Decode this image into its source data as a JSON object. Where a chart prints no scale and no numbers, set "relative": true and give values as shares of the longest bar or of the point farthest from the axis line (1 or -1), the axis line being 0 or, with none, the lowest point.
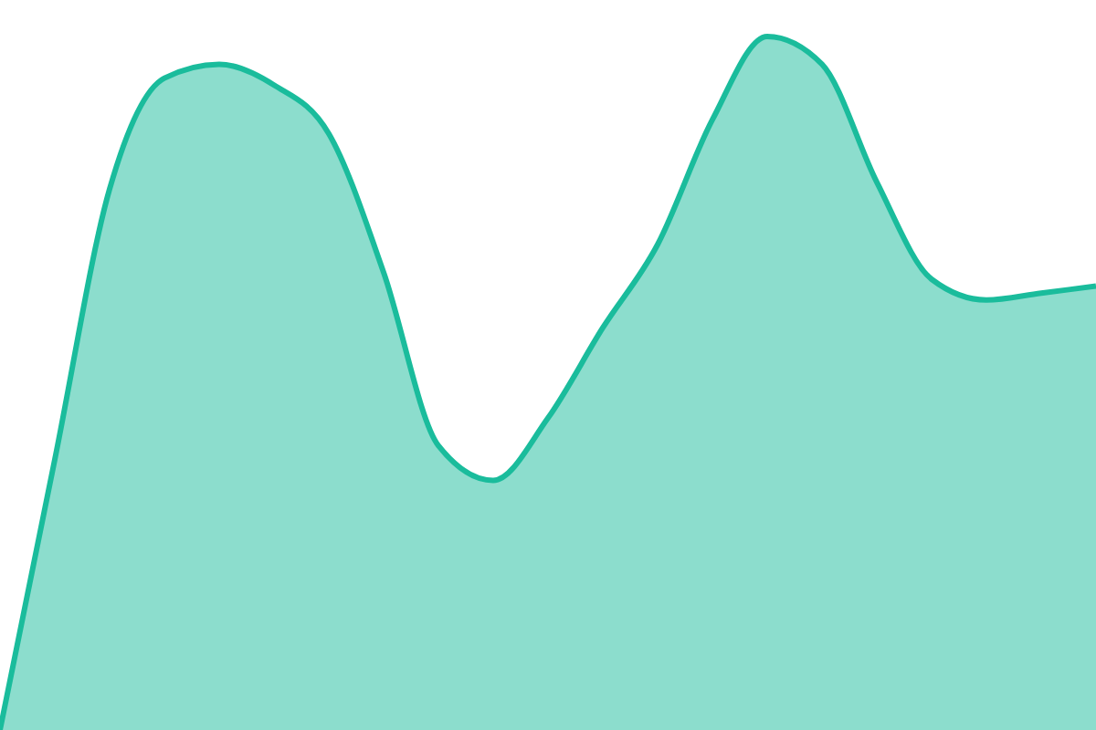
{
  "chart_data": {
    "type": "area",
    "relative": true,
    "categories": [
      null,
      null,
      null,
      null,
      null,
      null,
      null,
      null,
      null,
      null,
      null,
      null,
      null,
      null,
      null,
      null,
      null,
      null,
      null,
      null,
      null
    ],
    "series": [
      {
        "color": "#1abc9c",
        "values": [
          0,
          0.39,
          0.78,
          0.94,
          0.96,
          0.93,
          0.86,
          0.66,
          0.41,
          0.36,
          0.45,
          0.58,
          0.7,
          0.88,
          1,
          0.96,
          0.79,
          0.65,
          0.62,
          0.63,
          0.64
        ]
      }
    ]
  }
}
